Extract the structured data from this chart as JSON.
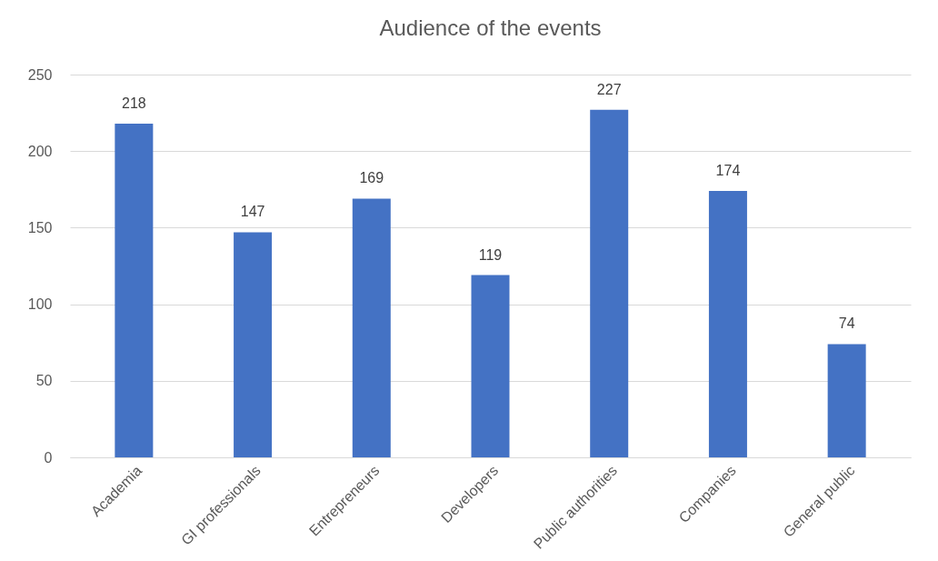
{
  "chart_data": {
    "type": "bar",
    "title": "Audience of the events",
    "categories": [
      "Academia",
      "GI professionals",
      "Entrepreneurs",
      "Developers",
      "Public authorities",
      "Companies",
      "General public"
    ],
    "values": [
      218,
      147,
      169,
      119,
      227,
      174,
      74
    ],
    "color": "#4472c4",
    "ylim": [
      0,
      250
    ],
    "yticks": [
      0,
      50,
      100,
      150,
      200,
      250
    ],
    "grid": "y",
    "data_labels": true
  }
}
